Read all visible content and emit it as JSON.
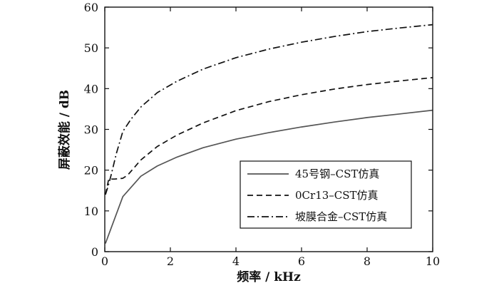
{
  "chart_data": {
    "type": "line",
    "xlabel": "频率 / kHz",
    "ylabel": "屏蔽效能 / dB",
    "xlim": [
      0,
      10
    ],
    "ylim": [
      0,
      60
    ],
    "xticks": [
      "0",
      "2",
      "4",
      "6",
      "8",
      "10"
    ],
    "yticks": [
      "0",
      "10",
      "20",
      "30",
      "40",
      "50",
      "60"
    ],
    "grid": false,
    "legend_position": "bottom-right",
    "series": [
      {
        "name": "45号钢–CST仿真",
        "color": "#555555",
        "dash": "solid",
        "x": [
          0.02,
          0.55,
          1.1,
          1.6,
          2.2,
          3,
          4,
          5,
          6,
          7,
          8,
          9,
          10
        ],
        "y": [
          2,
          13.5,
          18.5,
          21,
          23.2,
          25.5,
          27.6,
          29.2,
          30.6,
          31.8,
          32.9,
          33.8,
          34.7
        ]
      },
      {
        "name": "0Cr13–CST仿真",
        "color": "#111111",
        "dash": "dashed",
        "x": [
          0.02,
          0.12,
          0.3,
          0.55,
          0.7,
          1.1,
          1.6,
          2.2,
          3,
          4,
          5,
          6,
          7,
          8,
          9,
          10
        ],
        "y": [
          14,
          17.8,
          17.8,
          18,
          18.8,
          22.5,
          25.8,
          28.6,
          31.6,
          34.6,
          36.8,
          38.5,
          39.9,
          41,
          41.9,
          42.7
        ]
      },
      {
        "name": "坡膜合金–CST仿真",
        "color": "#111111",
        "dash": "dashdot",
        "x": [
          0.02,
          0.1,
          0.2,
          0.35,
          0.55,
          0.8,
          1.1,
          1.6,
          2.2,
          3,
          4,
          5,
          6,
          7,
          8,
          9,
          10
        ],
        "y": [
          14,
          16,
          19,
          24,
          29.5,
          32.5,
          35.5,
          39,
          41.8,
          44.8,
          47.6,
          49.7,
          51.4,
          52.8,
          54,
          54.9,
          55.7
        ]
      }
    ]
  }
}
